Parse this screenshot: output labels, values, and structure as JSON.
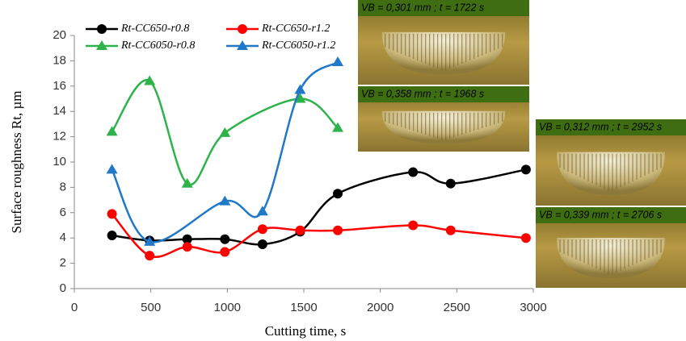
{
  "chart_data": {
    "type": "line",
    "xlabel": "Cutting time,  s",
    "ylabel": "Surface roughness Rt, µm",
    "xlim": [
      0,
      3000
    ],
    "xticks": [
      0,
      500,
      1000,
      1500,
      2000,
      2500,
      3000
    ],
    "ylim": [
      0,
      20
    ],
    "yticks": [
      0,
      2,
      4,
      6,
      8,
      10,
      12,
      14,
      16,
      18,
      20
    ],
    "smooth": true,
    "series": [
      {
        "name": "Rt-CC650-r0.8",
        "color": "#000000",
        "marker": "circle",
        "x": [
          246,
          492,
          738,
          984,
          1230,
          1476,
          1722,
          2214,
          2460,
          2952
        ],
        "values": [
          4.2,
          3.8,
          3.9,
          3.9,
          3.5,
          4.5,
          7.5,
          9.2,
          8.3,
          9.4
        ]
      },
      {
        "name": "Rt-CC650-r1.2",
        "color": "#ff0000",
        "marker": "circle",
        "x": [
          246,
          492,
          738,
          984,
          1230,
          1476,
          1722,
          2214,
          2460,
          2952
        ],
        "values": [
          5.9,
          2.6,
          3.3,
          2.9,
          4.7,
          4.6,
          4.6,
          5.0,
          4.6,
          4.0
        ]
      },
      {
        "name": "Rt-CC6050-r0.8",
        "color": "#2db34a",
        "marker": "triangle",
        "x": [
          246,
          492,
          738,
          984,
          1476,
          1722
        ],
        "values": [
          12.4,
          16.4,
          8.3,
          12.3,
          15.0,
          12.7
        ]
      },
      {
        "name": "Rt-CC6050-r1.2",
        "color": "#1f78c8",
        "marker": "triangle",
        "x": [
          246,
          492,
          984,
          1230,
          1476,
          1722
        ],
        "values": [
          9.4,
          3.7,
          6.9,
          6.1,
          15.7,
          17.9
        ]
      }
    ],
    "annotations": [
      "VB = 0,301 mm ; t = 1722 s",
      "VB = 0,358 mm ; t = 1968 s",
      "VB = 0,312 mm ; t = 2952 s",
      "VB = 0,339 mm ; t = 2706 s"
    ]
  }
}
